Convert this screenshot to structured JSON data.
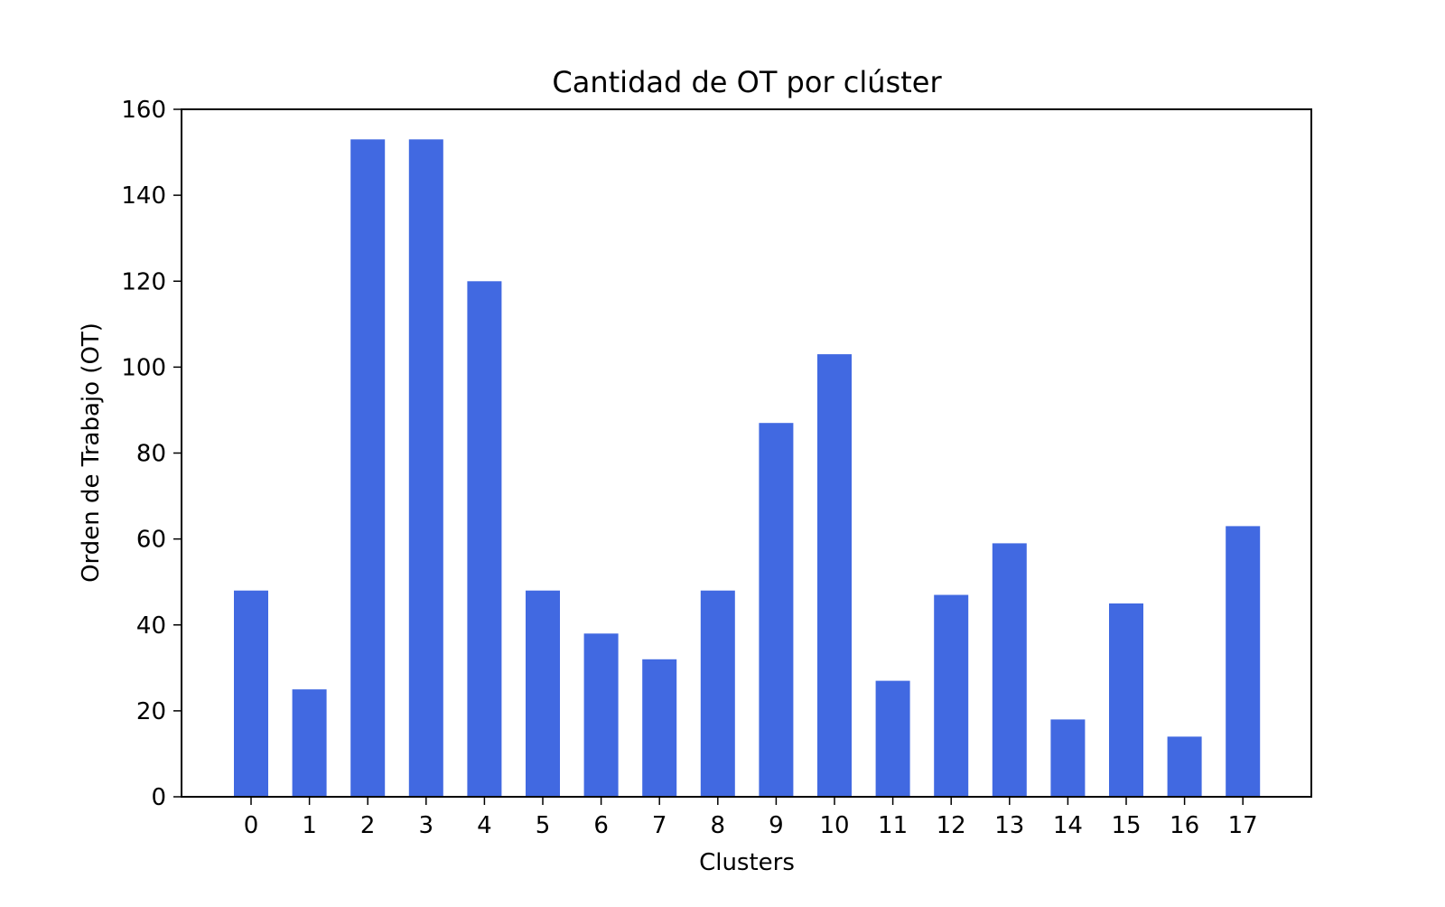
{
  "chart_data": {
    "type": "bar",
    "title": "Cantidad de OT por clúster",
    "xlabel": "Clusters",
    "ylabel": "Orden de Trabajo (OT)",
    "categories": [
      "0",
      "1",
      "2",
      "3",
      "4",
      "5",
      "6",
      "7",
      "8",
      "9",
      "10",
      "11",
      "12",
      "13",
      "14",
      "15",
      "16",
      "17"
    ],
    "values": [
      48,
      25,
      153,
      153,
      120,
      48,
      38,
      32,
      48,
      87,
      103,
      27,
      47,
      59,
      18,
      45,
      14,
      63
    ],
    "ylim": [
      0,
      160
    ],
    "yticks": [
      0,
      20,
      40,
      60,
      80,
      100,
      120,
      140,
      160
    ],
    "grid": false,
    "legend": "none",
    "bar_color": "#4169E1"
  }
}
